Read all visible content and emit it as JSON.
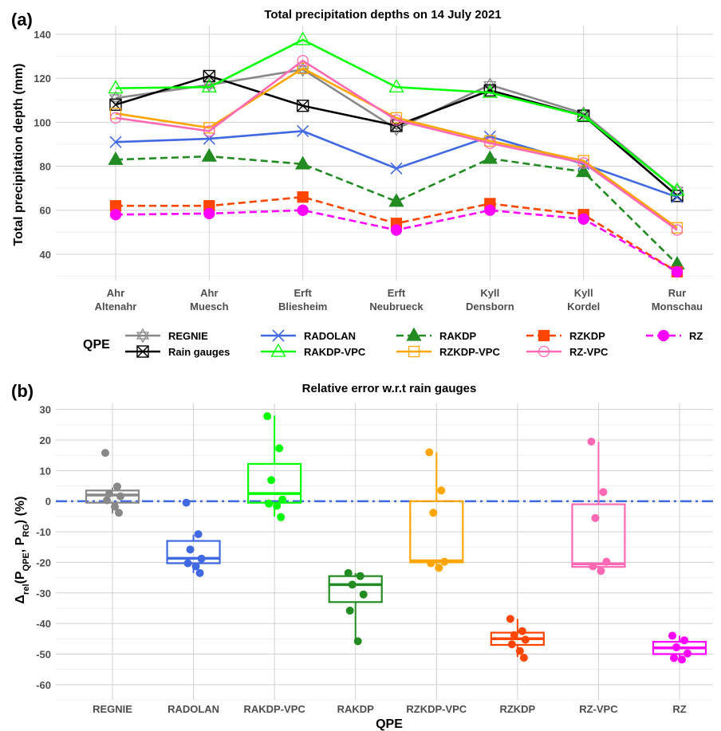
{
  "chart_data": [
    {
      "panel_label": "(a)",
      "type": "line",
      "title": "Total precipitation depths on 14 July 2021",
      "ylabel": "Total precipitation depth (mm)",
      "ylim": [
        28,
        144
      ],
      "yticks": [
        40,
        60,
        80,
        100,
        120,
        140
      ],
      "grid": true,
      "categories": [
        [
          "Ahr",
          "Altenahr"
        ],
        [
          "Ahr",
          "Muesch"
        ],
        [
          "Erft",
          "Bliesheim"
        ],
        [
          "Erft",
          "Neubrueck"
        ],
        [
          "Kyll",
          "Densborn"
        ],
        [
          "Kyll",
          "Kordel"
        ],
        [
          "Rur",
          "Monschau"
        ]
      ],
      "legend_title": "QPE",
      "legend_position": "bottom",
      "series": [
        {
          "name": "REGNIE",
          "color": "#888888",
          "dash": "solid",
          "marker": "star",
          "values": [
            111,
            117,
            124,
            97,
            117,
            104,
            69
          ]
        },
        {
          "name": "Rain gauges",
          "color": "#000000",
          "dash": "solid",
          "marker": "boxx",
          "values": [
            108,
            121,
            107.5,
            98.5,
            114.5,
            103,
            66.5
          ]
        },
        {
          "name": "RADOLAN",
          "color": "#4169E1",
          "dash": "solid",
          "marker": "x",
          "values": [
            91,
            92.5,
            96,
            79,
            93.5,
            81,
            66
          ]
        },
        {
          "name": "RAKDP-VPC",
          "color": "#00FF00",
          "dash": "solid",
          "marker": "triangle-open",
          "values": [
            115.5,
            116,
            137.5,
            116,
            113.5,
            103,
            69
          ]
        },
        {
          "name": "RAKDP",
          "color": "#228B22",
          "dash": "dashed",
          "marker": "triangle-filled",
          "values": [
            83,
            84.5,
            81,
            64,
            83.5,
            77.5,
            35.5
          ]
        },
        {
          "name": "RZKDP-VPC",
          "color": "#FFA500",
          "dash": "solid",
          "marker": "square-open",
          "values": [
            104,
            97.5,
            124.5,
            102,
            91.5,
            82.5,
            52
          ]
        },
        {
          "name": "RZKDP",
          "color": "#FF4500",
          "dash": "dashed",
          "marker": "square-filled",
          "values": [
            62,
            62,
            66,
            54,
            63,
            58,
            32
          ]
        },
        {
          "name": "RZ-VPC",
          "color": "#FF69B4",
          "dash": "solid",
          "marker": "circle-open",
          "values": [
            102,
            96,
            128,
            101,
            90.5,
            81.5,
            51
          ]
        },
        {
          "name": "RZ",
          "color": "#FF00FF",
          "dash": "dashed",
          "marker": "circle-filled",
          "values": [
            58,
            58.5,
            60,
            51,
            60,
            56,
            32
          ]
        }
      ]
    },
    {
      "panel_label": "(b)",
      "type": "box",
      "title": "Relative error w.r.t rain gauges",
      "xlabel": "QPE",
      "ylabel_parts": {
        "delta": "Δ",
        "sub": "rel",
        "body": "(P",
        "sub2": "QPE",
        "comma": ", P",
        "sub3": "RG",
        "end": ") (%)"
      },
      "ylim": [
        -65,
        32
      ],
      "yticks": [
        -60,
        -50,
        -40,
        -30,
        -20,
        -10,
        0,
        10,
        20,
        30
      ],
      "reference_line": {
        "y": 0,
        "color": "#4169E1",
        "style": "dashdot"
      },
      "grid": true,
      "categories": [
        "REGNIE",
        "RADOLAN",
        "RAKDP-VPC",
        "RAKDP",
        "RZKDP-VPC",
        "RZKDP",
        "RZ-VPC",
        "RZ"
      ],
      "series": [
        {
          "name": "REGNIE",
          "color": "#888888",
          "box": {
            "q1": -0.5,
            "median": 2,
            "q3": 3.5,
            "low": -4,
            "high": 4.5
          },
          "points": [
            15.8,
            4.8,
            2.5,
            1.6,
            0.3,
            -1.8,
            -3.8
          ]
        },
        {
          "name": "RADOLAN",
          "color": "#4169E1",
          "box": {
            "q1": -20.3,
            "median": -18.7,
            "q3": -13,
            "low": -23.5,
            "high": -11
          },
          "points": [
            -0.5,
            -10.8,
            -15.8,
            -18.8,
            -20.3,
            -21.3,
            -23.5
          ]
        },
        {
          "name": "RAKDP-VPC",
          "color": "#00FF00",
          "box": {
            "q1": -0.5,
            "median": 2.5,
            "q3": 12.2,
            "low": -5,
            "high": 28
          },
          "points": [
            27.8,
            17.3,
            6.9,
            0.5,
            -0.8,
            -1.5,
            -5.2
          ]
        },
        {
          "name": "RAKDP",
          "color": "#228B22",
          "box": {
            "q1": -33,
            "median": -27.3,
            "q3": -24.5,
            "low": -45.8,
            "high": -23.5
          },
          "points": [
            -23.5,
            -24.5,
            -27.3,
            -30.5,
            -35.8,
            -45.8
          ]
        },
        {
          "name": "RZKDP-VPC",
          "color": "#FFA500",
          "box": {
            "q1": -20,
            "median": -19.5,
            "q3": 0,
            "low": -22,
            "high": 16
          },
          "points": [
            16,
            3.5,
            -3.8,
            -19.8,
            -20.3,
            -21.8
          ]
        },
        {
          "name": "RZKDP",
          "color": "#FF4500",
          "box": {
            "q1": -47,
            "median": -45,
            "q3": -43,
            "low": -51,
            "high": -38.5
          },
          "points": [
            -38.5,
            -42.5,
            -43.8,
            -45.3,
            -46.8,
            -49,
            -51.2
          ]
        },
        {
          "name": "RZ-VPC",
          "color": "#FF69B4",
          "box": {
            "q1": -21.5,
            "median": -20.5,
            "q3": -1,
            "low": -23,
            "high": 19.5
          },
          "points": [
            19.5,
            3,
            -5.5,
            -19.8,
            -21.3,
            -22.8
          ]
        },
        {
          "name": "RZ",
          "color": "#FF00FF",
          "box": {
            "q1": -50,
            "median": -48,
            "q3": -46,
            "low": -52,
            "high": -44
          },
          "points": [
            -44,
            -45.5,
            -47.8,
            -49.8,
            -51.3,
            -51.8
          ]
        }
      ]
    }
  ]
}
